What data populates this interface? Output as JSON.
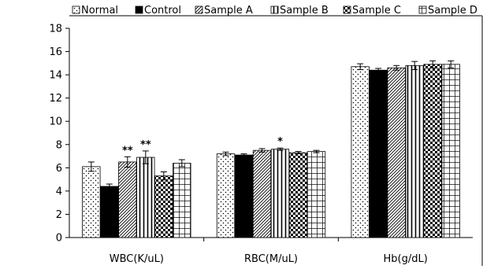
{
  "chart_data": {
    "type": "bar",
    "categories": [
      "WBC(K/uL)",
      "RBC(M/uL)",
      "Hb(g/dL)"
    ],
    "ylim": [
      0,
      18
    ],
    "yticks": [
      0,
      2,
      4,
      6,
      8,
      10,
      12,
      14,
      16,
      18
    ],
    "grid": false,
    "legend_position": "top",
    "series": [
      {
        "name": "Normal",
        "pattern": "dots",
        "values": [
          6.1,
          7.2,
          14.7
        ],
        "errors": [
          0.4,
          0.15,
          0.25
        ],
        "annotations": [
          "",
          "",
          ""
        ]
      },
      {
        "name": "Control",
        "pattern": "solid",
        "values": [
          4.4,
          7.1,
          14.4
        ],
        "errors": [
          0.2,
          0.1,
          0.15
        ],
        "annotations": [
          "",
          "",
          ""
        ]
      },
      {
        "name": "Sample A",
        "pattern": "diagonal",
        "values": [
          6.5,
          7.5,
          14.6
        ],
        "errors": [
          0.45,
          0.15,
          0.2
        ],
        "annotations": [
          "**",
          "",
          ""
        ]
      },
      {
        "name": "Sample B",
        "pattern": "vertical",
        "values": [
          6.9,
          7.6,
          14.8
        ],
        "errors": [
          0.55,
          0.1,
          0.35
        ],
        "annotations": [
          "**",
          "*",
          ""
        ]
      },
      {
        "name": "Sample C",
        "pattern": "checker",
        "values": [
          5.3,
          7.3,
          14.9
        ],
        "errors": [
          0.35,
          0.1,
          0.3
        ],
        "annotations": [
          "",
          "",
          ""
        ]
      },
      {
        "name": "Sample D",
        "pattern": "grid",
        "values": [
          6.4,
          7.4,
          14.9
        ],
        "errors": [
          0.3,
          0.1,
          0.3
        ],
        "annotations": [
          "",
          "",
          ""
        ]
      }
    ]
  }
}
